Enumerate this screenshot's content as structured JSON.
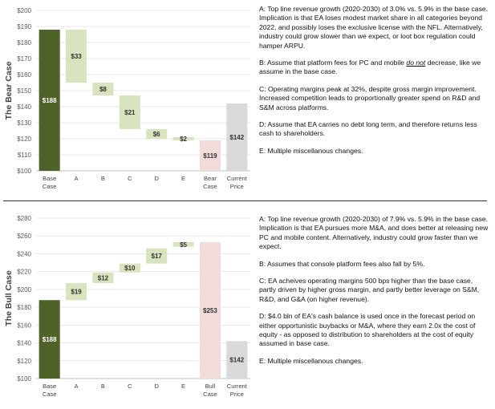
{
  "colors": {
    "base": "#4f6228",
    "step": "#d7e4bd",
    "bear_bar": "#f2dcdb",
    "bull_bar": "#f2dcdb",
    "price": "#d9d9d9",
    "grid": "#e3e3e3",
    "axis_text": "#595959"
  },
  "chart_data": [
    {
      "type": "bar",
      "name": "bear",
      "ylabel": "The Bear Case",
      "ylim": [
        100,
        200
      ],
      "yticks": [
        100,
        110,
        120,
        130,
        140,
        150,
        160,
        170,
        180,
        190,
        200
      ],
      "tick_prefix": "$",
      "categories": [
        "Base Case",
        "A",
        "B",
        "C",
        "D",
        "E",
        "Bear Case",
        "Current Price"
      ],
      "bars": [
        {
          "kind": "base",
          "low": 100,
          "high": 188,
          "label": "$188",
          "label_color": "#ffffff"
        },
        {
          "kind": "step",
          "low": 155,
          "high": 188,
          "label": "$33",
          "label_color": "#333333"
        },
        {
          "kind": "step",
          "low": 147,
          "high": 155,
          "label": "$8",
          "label_color": "#333333"
        },
        {
          "kind": "step",
          "low": 126,
          "high": 147,
          "label": "$21",
          "label_color": "#333333"
        },
        {
          "kind": "step",
          "low": 120,
          "high": 126,
          "label": "$6",
          "label_color": "#333333"
        },
        {
          "kind": "step",
          "low": 119,
          "high": 121,
          "label": "$2",
          "label_color": "#333333"
        },
        {
          "kind": "bear",
          "low": 100,
          "high": 119,
          "label": "$119",
          "label_color": "#333333"
        },
        {
          "kind": "price",
          "low": 100,
          "high": 142,
          "label": "$142",
          "label_color": "#333333"
        }
      ]
    },
    {
      "type": "bar",
      "name": "bull",
      "ylabel": "The Bull Case",
      "ylim": [
        100,
        280
      ],
      "yticks": [
        100,
        120,
        140,
        160,
        180,
        200,
        220,
        240,
        260,
        280
      ],
      "tick_prefix": "$",
      "categories": [
        "Base Case",
        "A",
        "B",
        "C",
        "D",
        "E",
        "Bull Case",
        "Current Price"
      ],
      "bars": [
        {
          "kind": "base",
          "low": 100,
          "high": 188,
          "label": "$188",
          "label_color": "#ffffff"
        },
        {
          "kind": "step",
          "low": 188,
          "high": 207,
          "label": "$19",
          "label_color": "#333333"
        },
        {
          "kind": "step",
          "low": 207,
          "high": 219,
          "label": "$12",
          "label_color": "#333333"
        },
        {
          "kind": "step",
          "low": 219,
          "high": 229,
          "label": "$10",
          "label_color": "#333333"
        },
        {
          "kind": "step",
          "low": 229,
          "high": 246,
          "label": "$17",
          "label_color": "#333333"
        },
        {
          "kind": "step",
          "low": 248,
          "high": 253,
          "label": "$5",
          "label_color": "#333333"
        },
        {
          "kind": "bull",
          "low": 100,
          "high": 253,
          "label": "$253",
          "label_color": "#333333"
        },
        {
          "kind": "price",
          "low": 100,
          "high": 142,
          "label": "$142",
          "label_color": "#333333"
        }
      ]
    }
  ],
  "bear_notes": {
    "a": "A: Top line revenue growth (2020-2030) of 3.0% vs. 5.9% in the base case. Implication is that EA loses modest market share in all categories beyond 2022, and possibly loses the exclusive license with the NFL. Alternatively, industry could grow slower than we expect, or loot box regulation could hamper ARPU.",
    "b_pre": "B: Assume that platform fees for PC and mobile ",
    "b_emph": "do not",
    "b_post": " decrease, like we assume in the base case.",
    "c": "C: Operating margins peak at 32%, despite gross margin improvement. Increased competition leads to proportionally greater spend on R&D and S&M across platforms.",
    "d": "D: Assume that EA carries no debt long term, and therefore returns less cash to shareholders.",
    "e": "E: Multiple miscellanous changes."
  },
  "bull_notes": {
    "a": "A: Top line revenue growth (2020-2030) of 7.9% vs. 5.9% in the base case. Implication is that EA pursues more M&A, and does better at releasing new PC and mobile content. Alternatively, industry could grow faster than we expect.",
    "b": "B: Assumes that console platform fees also fall by 5%.",
    "c": "C: EA acheives operating margins 500 bps higher than the base case, partly driven by higher gross margin, and partly better leverage on S&M, R&D, and G&A (on higher revenue).",
    "d": "D: $4.0 bln of EA's cash balance is used once in the forecast period on either opportunistic buybacks or M&A, where they earn 2.0x the cost of equity - as opposed to distribution to shareholders at the cost of equity assumed in base case.",
    "e": "E: Multiple miscellanous changes."
  }
}
